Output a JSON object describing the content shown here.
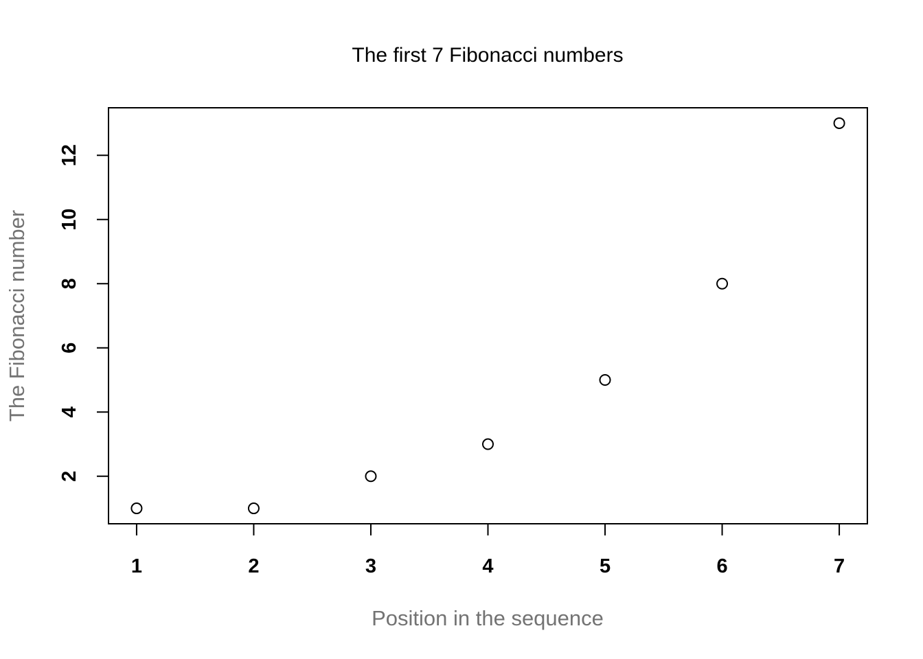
{
  "chart_data": {
    "type": "scatter",
    "title": "The first 7 Fibonacci numbers",
    "xlabel": "Position in the sequence",
    "ylabel": "The Fibonacci number",
    "x": [
      1,
      2,
      3,
      4,
      5,
      6,
      7
    ],
    "y": [
      1,
      1,
      2,
      3,
      5,
      8,
      13
    ],
    "xlim": [
      0.76,
      7.24
    ],
    "ylim": [
      0.52,
      13.48
    ],
    "xticks": [
      1,
      2,
      3,
      4,
      5,
      6,
      7
    ],
    "yticks": [
      2,
      4,
      6,
      8,
      10,
      12
    ],
    "grid": false,
    "legend": "none",
    "marker": "open-circle",
    "colors": {
      "points": "#000000",
      "axis_labels": "#737373",
      "tick_labels": "#000000",
      "title": "#000000"
    }
  }
}
